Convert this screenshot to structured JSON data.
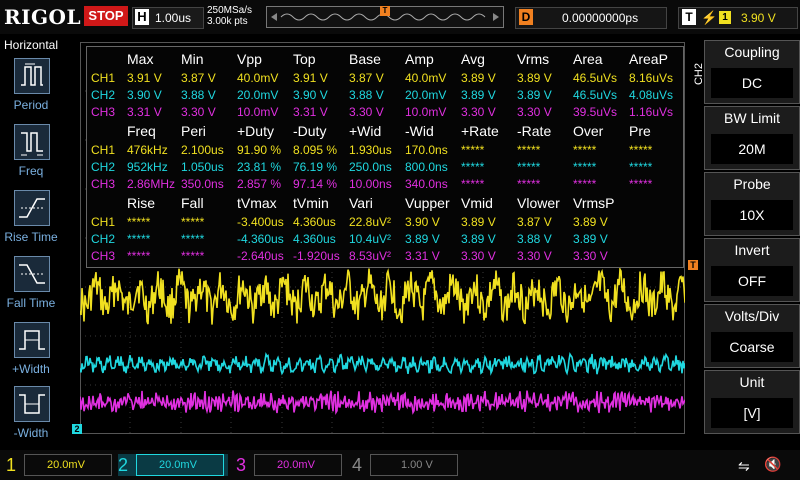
{
  "topbar": {
    "brand": "RIGOL",
    "run_state": "STOP",
    "horizontal_label": "H",
    "timebase": "1.00us",
    "sample_rate": "250MSa/s",
    "memory_depth": "3.00k pts",
    "delay_label": "D",
    "delay_value": "0.00000000ps",
    "trigger_label": "T",
    "trigger_edge_icon": "rising-edge-icon",
    "trigger_source": "1",
    "trigger_level": "3.90 V",
    "trigger_marker": "T"
  },
  "leftpanel": {
    "title": "Horizontal",
    "items": [
      {
        "label": "Period",
        "icon": "period-icon"
      },
      {
        "label": "Freq",
        "icon": "freq-icon"
      },
      {
        "label": "Rise Time",
        "icon": "rise-time-icon"
      },
      {
        "label": "Fall Time",
        "icon": "fall-time-icon"
      },
      {
        "label": "+Width",
        "icon": "pos-width-icon"
      },
      {
        "label": "-Width",
        "icon": "neg-width-icon"
      }
    ]
  },
  "measure": {
    "sections": [
      {
        "headers": [
          "Max",
          "Min",
          "Vpp",
          "Top",
          "Base",
          "Amp",
          "Avg",
          "Vrms",
          "Area",
          "AreaP"
        ],
        "rows": [
          {
            "ch": "CH1",
            "values": [
              "3.91 V",
              "3.87 V",
              "40.0mV",
              "3.91 V",
              "3.87 V",
              "40.0mV",
              "3.89 V",
              "3.89 V",
              "46.5uVs",
              "8.16uVs"
            ]
          },
          {
            "ch": "CH2",
            "values": [
              "3.90 V",
              "3.88 V",
              "20.0mV",
              "3.90 V",
              "3.88 V",
              "20.0mV",
              "3.89 V",
              "3.89 V",
              "46.5uVs",
              "4.08uVs"
            ]
          },
          {
            "ch": "CH3",
            "values": [
              "3.31 V",
              "3.30 V",
              "10.0mV",
              "3.31 V",
              "3.30 V",
              "10.0mV",
              "3.30 V",
              "3.30 V",
              "39.5uVs",
              "1.16uVs"
            ]
          }
        ]
      },
      {
        "headers": [
          "Freq",
          "Peri",
          "+Duty",
          "-Duty",
          "+Wid",
          "-Wid",
          "+Rate",
          "-Rate",
          "Over",
          "Pre"
        ],
        "rows": [
          {
            "ch": "CH1",
            "values": [
              "476kHz",
              "2.100us",
              "91.90 %",
              "8.095 %",
              "1.930us",
              "170.0ns",
              "*****",
              "*****",
              "*****",
              "*****"
            ]
          },
          {
            "ch": "CH2",
            "values": [
              "952kHz",
              "1.050us",
              "23.81 %",
              "76.19 %",
              "250.0ns",
              "800.0ns",
              "*****",
              "*****",
              "*****",
              "*****"
            ]
          },
          {
            "ch": "CH3",
            "values": [
              "2.86MHz",
              "350.0ns",
              "2.857 %",
              "97.14 %",
              "10.00ns",
              "340.0ns",
              "*****",
              "*****",
              "*****",
              "*****"
            ]
          }
        ]
      },
      {
        "headers": [
          "Rise",
          "Fall",
          "tVmax",
          "tVmin",
          "Vari",
          "Vupper",
          "Vmid",
          "Vlower",
          "VrmsP",
          ""
        ],
        "rows": [
          {
            "ch": "CH1",
            "values": [
              "*****",
              "*****",
              "-3.400us",
              "4.360us",
              "22.8uV²",
              "3.90 V",
              "3.89 V",
              "3.87 V",
              "3.89 V",
              ""
            ]
          },
          {
            "ch": "CH2",
            "values": [
              "*****",
              "*****",
              "-4.360us",
              "4.360us",
              "10.4uV²",
              "3.89 V",
              "3.89 V",
              "3.88 V",
              "3.89 V",
              ""
            ]
          },
          {
            "ch": "CH3",
            "values": [
              "*****",
              "*****",
              "-2.640us",
              "-1.920us",
              "8.53uV²",
              "3.31 V",
              "3.30 V",
              "3.30 V",
              "3.30 V",
              ""
            ]
          }
        ]
      }
    ]
  },
  "rightpanel": {
    "channel_tag": "CH2",
    "items": [
      {
        "title": "Coupling",
        "value": "DC"
      },
      {
        "title": "BW Limit",
        "value": "20M"
      },
      {
        "title": "Probe",
        "value": "10X"
      },
      {
        "title": "Invert",
        "value": "OFF"
      },
      {
        "title": "Volts/Div",
        "value": "Coarse"
      },
      {
        "title": "Unit",
        "value": "[V]"
      }
    ]
  },
  "bottombar": {
    "channels": [
      {
        "num": "1",
        "scale": "20.0mV",
        "color": "#f0e020"
      },
      {
        "num": "2",
        "scale": "20.0mV",
        "color": "#20d8e0"
      },
      {
        "num": "3",
        "scale": "20.0mV",
        "color": "#e030e0"
      },
      {
        "num": "4",
        "scale": "1.00 V",
        "color": "#888888"
      }
    ]
  },
  "colors": {
    "ch1": "#f0e020",
    "ch2": "#20d8e0",
    "ch3": "#e030e0",
    "trigger": "#f08020",
    "stop": "#d01818"
  }
}
